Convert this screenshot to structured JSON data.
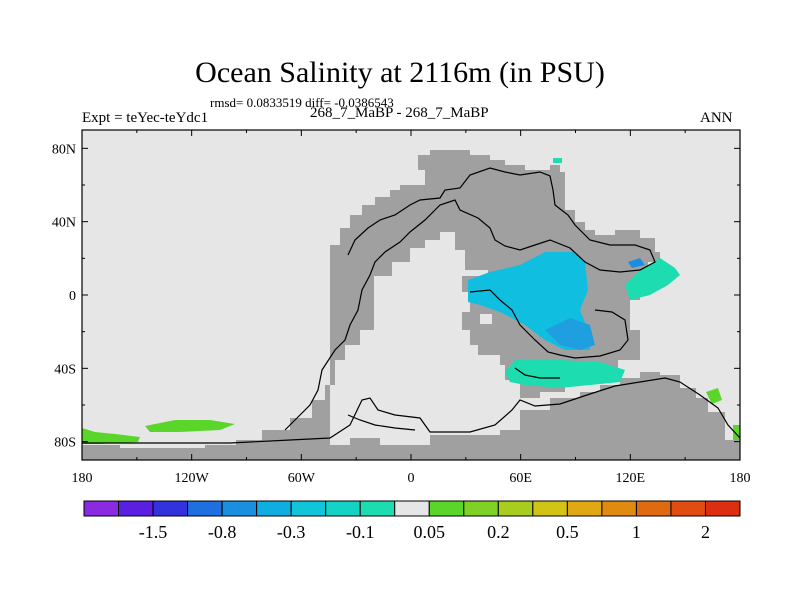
{
  "title": "Ocean Salinity at 2116m (in PSU)",
  "stats": "rmsd= 0.0833519 diff= -0.0386543",
  "experiment_label": "Expt = teYec-teYdc1",
  "case_label": "268_7_MaBP - 268_7_MaBP",
  "season_label": "ANN",
  "map": {
    "projection": "cylindrical-equidistant",
    "lon_range": [
      -180,
      180
    ],
    "lat_range": [
      -90,
      90
    ],
    "lon_ticks": [
      {
        "value": -180,
        "label": "180"
      },
      {
        "value": -120,
        "label": "120W"
      },
      {
        "value": -60,
        "label": "60W"
      },
      {
        "value": 0,
        "label": "0"
      },
      {
        "value": 60,
        "label": "60E"
      },
      {
        "value": 120,
        "label": "120E"
      },
      {
        "value": 180,
        "label": "180"
      }
    ],
    "lat_ticks": [
      {
        "value": 80,
        "label": "80N"
      },
      {
        "value": 40,
        "label": "40N"
      },
      {
        "value": 0,
        "label": "0"
      },
      {
        "value": -40,
        "label": "40S"
      },
      {
        "value": -80,
        "label": "80S"
      }
    ],
    "colors": {
      "ocean_background": "#e6e6e6",
      "land_mask": "#a0a0a0",
      "coastline": "#000000"
    }
  },
  "colorbar": {
    "colors": [
      "#8a2be2",
      "#5a1fe0",
      "#3333dd",
      "#1f6fe0",
      "#1a8fdf",
      "#10aee0",
      "#10c4da",
      "#13d4c4",
      "#1cdcb0",
      "#e6e6e6",
      "#5ad62a",
      "#7fd126",
      "#a8cd1e",
      "#d2c414",
      "#e0a812",
      "#e08a10",
      "#e06a10",
      "#e04c12",
      "#dc2e10"
    ],
    "labels": [
      {
        "after_bin": 1,
        "text": "-1.5"
      },
      {
        "after_bin": 3,
        "text": "-0.8"
      },
      {
        "after_bin": 5,
        "text": "-0.3"
      },
      {
        "after_bin": 7,
        "text": "-0.1"
      },
      {
        "after_bin": 9,
        "text": "0.05"
      },
      {
        "after_bin": 11,
        "text": "0.2"
      },
      {
        "after_bin": 13,
        "text": "0.5"
      },
      {
        "after_bin": 15,
        "text": "1"
      },
      {
        "after_bin": 17,
        "text": "2"
      }
    ]
  }
}
